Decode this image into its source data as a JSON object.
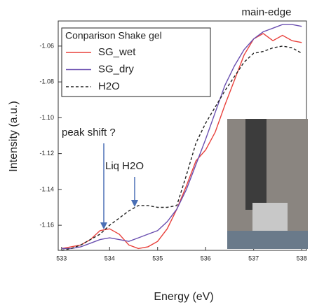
{
  "chart_data": {
    "type": "line",
    "x_label": "Energy (eV)",
    "y_label": "Intensity (a.u.)",
    "legend_title": "Conparison Shake gel",
    "annotations": [
      "main-edge",
      "peak shift ?",
      "Liq H2O"
    ],
    "x": [
      533,
      533.2,
      533.4,
      533.6,
      533.8,
      534,
      534.2,
      534.4,
      534.6,
      534.8,
      535,
      535.2,
      535.4,
      535.6,
      535.8,
      536,
      536.2,
      536.4,
      536.6,
      536.8,
      537,
      537.2,
      537.4,
      537.6,
      537.8,
      538
    ],
    "series": [
      {
        "name": "SG_wet",
        "color": "#e8413c",
        "dash": false,
        "values": [
          -1.173,
          -1.172,
          -1.171,
          -1.168,
          -1.163,
          -1.162,
          -1.165,
          -1.171,
          -1.173,
          -1.172,
          -1.169,
          -1.162,
          -1.151,
          -1.138,
          -1.124,
          -1.118,
          -1.108,
          -1.093,
          -1.079,
          -1.065,
          -1.056,
          -1.053,
          -1.057,
          -1.054,
          -1.057,
          -1.058
        ]
      },
      {
        "name": "SG_dry",
        "color": "#6a4fb0",
        "dash": false,
        "values": [
          -1.173,
          -1.173,
          -1.172,
          -1.17,
          -1.168,
          -1.167,
          -1.168,
          -1.169,
          -1.167,
          -1.165,
          -1.163,
          -1.158,
          -1.151,
          -1.14,
          -1.126,
          -1.112,
          -1.097,
          -1.082,
          -1.071,
          -1.062,
          -1.056,
          -1.052,
          -1.05,
          -1.048,
          -1.048,
          -1.049
        ]
      },
      {
        "name": "H2O",
        "color": "#222222",
        "dash": true,
        "values": [
          -1.174,
          -1.173,
          -1.171,
          -1.168,
          -1.165,
          -1.16,
          -1.156,
          -1.152,
          -1.149,
          -1.149,
          -1.15,
          -1.15,
          -1.149,
          -1.132,
          -1.114,
          -1.103,
          -1.094,
          -1.085,
          -1.077,
          -1.069,
          -1.064,
          -1.063,
          -1.061,
          -1.06,
          -1.061,
          -1.064
        ]
      }
    ],
    "xlim": [
      532.93,
      538.1
    ],
    "xticks": [
      533,
      534,
      535,
      536,
      537,
      538
    ],
    "ylim": [
      -1.174,
      -1.046
    ],
    "yticks": [
      -1.16,
      -1.14,
      -1.12,
      {
        "value": -1.1,
        "label": "-1.10"
      },
      -1.08,
      -1.06
    ],
    "grid": false
  }
}
